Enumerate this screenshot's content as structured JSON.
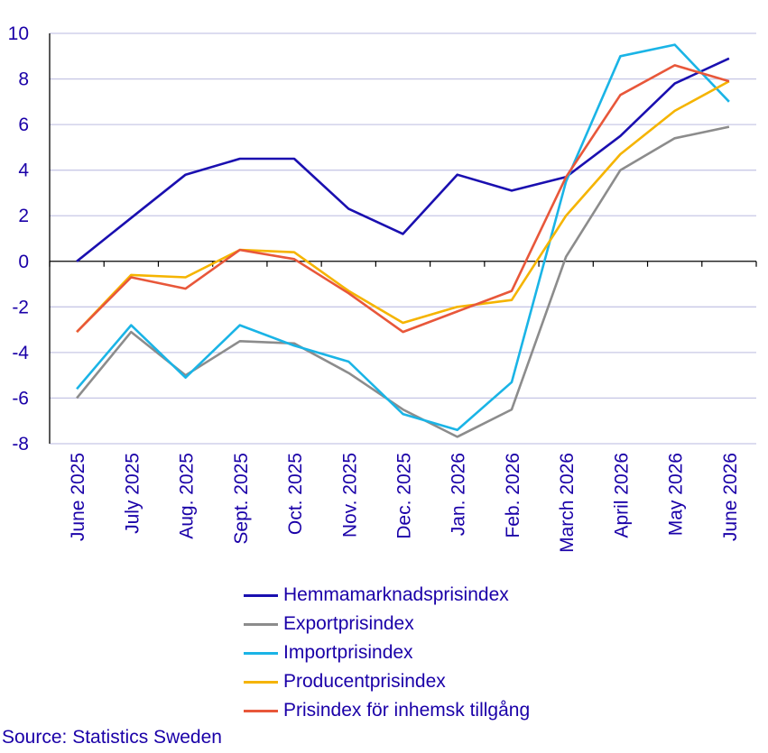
{
  "chart_data": {
    "type": "line",
    "categories": [
      "June 2025",
      "July 2025",
      "Aug. 2025",
      "Sept. 2025",
      "Oct. 2025",
      "Nov. 2025",
      "Dec. 2025",
      "Jan. 2026",
      "Feb. 2026",
      "March 2026",
      "April 2026",
      "May 2026",
      "June 2026"
    ],
    "ylim": [
      -8,
      10
    ],
    "yticks": [
      10,
      8,
      6,
      4,
      2,
      0,
      -2,
      -4,
      -6,
      -8
    ],
    "grid": true,
    "legend_position": "bottom",
    "series": [
      {
        "name": "Hemmamarknadsprisindex",
        "color": "#1a0fb0",
        "values": [
          0.0,
          1.9,
          3.8,
          4.5,
          4.5,
          2.3,
          1.2,
          3.8,
          3.1,
          3.7,
          5.5,
          7.8,
          8.9
        ]
      },
      {
        "name": "Exportprisindex",
        "color": "#8c8c8c",
        "values": [
          -6.0,
          -3.1,
          -5.0,
          -3.5,
          -3.6,
          -4.9,
          -6.5,
          -7.7,
          -6.5,
          0.2,
          4.0,
          5.4,
          5.9
        ]
      },
      {
        "name": "Importprisindex",
        "color": "#1ab4e6",
        "values": [
          -5.6,
          -2.8,
          -5.1,
          -2.8,
          -3.7,
          -4.4,
          -6.7,
          -7.4,
          -5.3,
          3.5,
          9.0,
          9.5,
          7.0
        ]
      },
      {
        "name": "Producentprisindex",
        "color": "#f5b400",
        "values": [
          -3.1,
          -0.6,
          -0.7,
          0.5,
          0.4,
          -1.3,
          -2.7,
          -2.0,
          -1.7,
          2.0,
          4.7,
          6.6,
          7.9
        ]
      },
      {
        "name": "Prisindex för inhemsk tillgång",
        "color": "#e8573a",
        "values": [
          -3.1,
          -0.7,
          -1.2,
          0.5,
          0.1,
          -1.4,
          -3.1,
          -2.2,
          -1.3,
          3.7,
          7.3,
          8.6,
          7.9
        ]
      }
    ]
  },
  "source": "Source: Statistics Sweden"
}
